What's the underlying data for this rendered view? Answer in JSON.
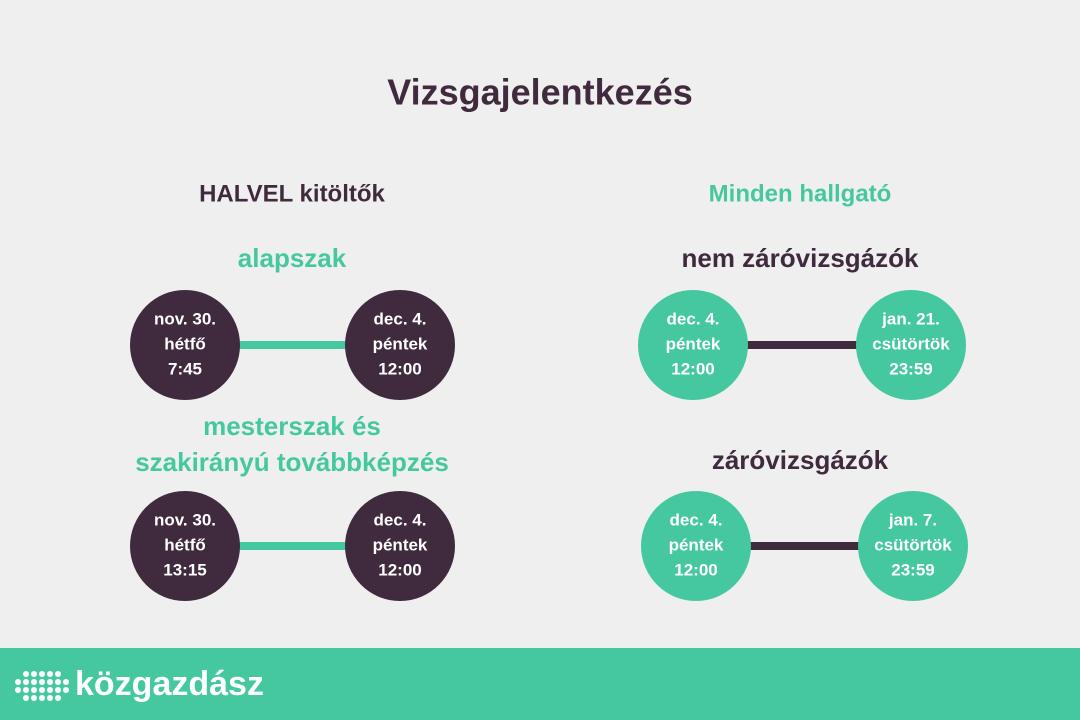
{
  "title": "Vizsgajelentkezés",
  "columns": [
    {
      "heading": "HALVEL kitöltők",
      "groups": [
        {
          "label": [
            "alapszak"
          ],
          "start": [
            "nov. 30.",
            "hétfő",
            "7:45"
          ],
          "end": [
            "dec. 4.",
            "péntek",
            "12:00"
          ]
        },
        {
          "label": [
            "mesterszak és",
            "szakirányú továbbképzés"
          ],
          "start": [
            "nov. 30.",
            "hétfő",
            "13:15"
          ],
          "end": [
            "dec. 4.",
            "péntek",
            "12:00"
          ]
        }
      ]
    },
    {
      "heading": "Minden hallgató",
      "groups": [
        {
          "label": [
            "nem záróvizsgázók"
          ],
          "start": [
            "dec. 4.",
            "péntek",
            "12:00"
          ],
          "end": [
            "jan. 21.",
            "csütörtök",
            "23:59"
          ]
        },
        {
          "label": [
            "záróvizsgázók"
          ],
          "start": [
            "dec. 4.",
            "péntek",
            "12:00"
          ],
          "end": [
            "jan. 7.",
            "csütörtök",
            "23:59"
          ]
        }
      ]
    }
  ],
  "footer": {
    "brand": "közgazdász"
  }
}
